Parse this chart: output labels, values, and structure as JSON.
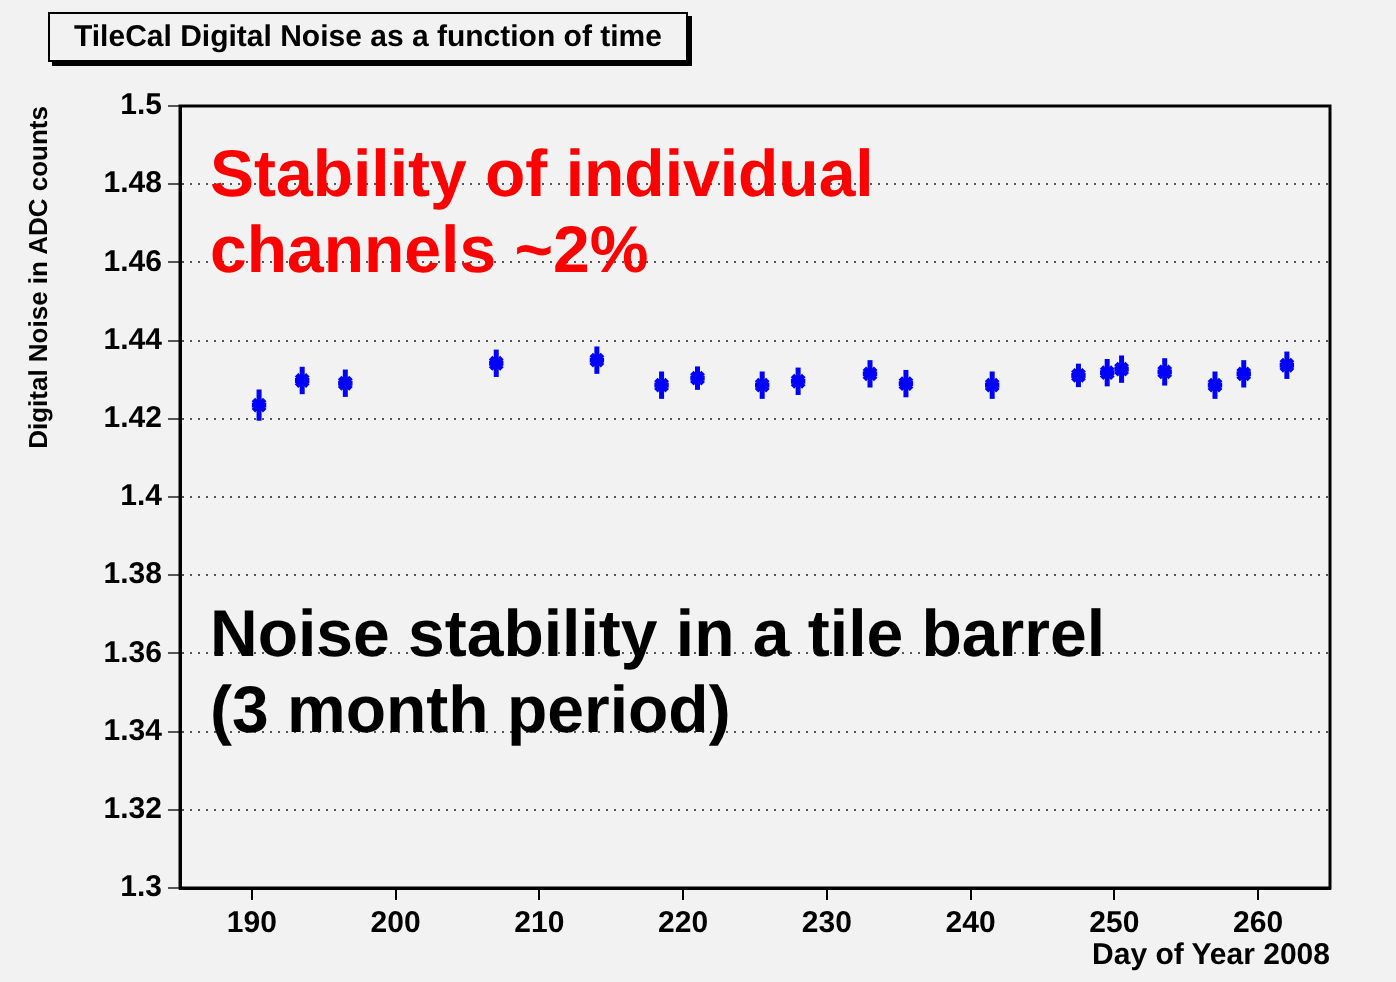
{
  "chart_data": {
    "type": "scatter",
    "title": "TileCal Digital Noise as a function of time",
    "xlabel": "Day of Year 2008",
    "ylabel": "Digital Noise in ADC counts",
    "annotations": [
      "Stability of individual\nchannels ~2%",
      "Noise stability in a tile barrel\n(3 month period)"
    ],
    "x": [
      190.5,
      193.5,
      196.5,
      207,
      214,
      218.5,
      221,
      225.5,
      228,
      233,
      235.5,
      241.5,
      247.5,
      249.5,
      250.5,
      253.5,
      257,
      259,
      262
    ],
    "series": [
      {
        "color": "#0000ff",
        "values": [
          1.4235,
          1.4298,
          1.4291,
          1.4342,
          1.435,
          1.4286,
          1.4304,
          1.4286,
          1.4296,
          1.4315,
          1.429,
          1.4286,
          1.4311,
          1.4318,
          1.4327,
          1.432,
          1.4286,
          1.4315,
          1.4337
        ],
        "errors": [
          0.004,
          0.0035,
          0.0035,
          0.0035,
          0.0035,
          0.0035,
          0.003,
          0.0035,
          0.0035,
          0.0035,
          0.0035,
          0.0035,
          0.003,
          0.0035,
          0.0035,
          0.0035,
          0.0035,
          0.0035,
          0.0035
        ],
        "xerrors": [
          0.5,
          0.5,
          0.5,
          0.5,
          0.5,
          0.5,
          0.5,
          0.5,
          0.5,
          0.5,
          0.5,
          0.5,
          0.5,
          0.5,
          0.5,
          0.5,
          0.5,
          0.5,
          0.5
        ]
      }
    ],
    "xlim": [
      185,
      265
    ],
    "xticks": [
      190,
      200,
      210,
      220,
      230,
      240,
      250,
      260
    ],
    "ylim": [
      1.3,
      1.5
    ],
    "yticks": [
      1.3,
      1.32,
      1.34,
      1.36,
      1.38,
      1.4,
      1.42,
      1.44,
      1.46,
      1.48,
      1.5
    ],
    "grid": "y",
    "marker": "cross",
    "legend": false
  }
}
